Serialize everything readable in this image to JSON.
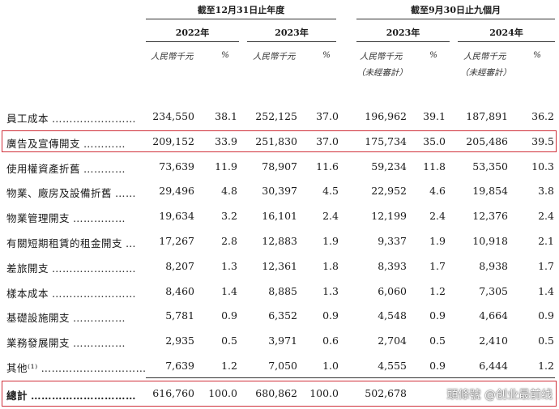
{
  "headers": {
    "group_annual": "截至12月31日止年度",
    "group_nine_months": "截至9月30日止九個月",
    "years": [
      "2022年",
      "2023年",
      "2023年",
      "2024年"
    ],
    "unit": "人民幣千元",
    "unaudited": "（未經審計）",
    "pct": "%"
  },
  "rows": [
    {
      "label": "員工成本",
      "dots": "……………………",
      "v": [
        "234,550",
        "38.1",
        "252,125",
        "37.0",
        "196,962",
        "39.1",
        "187,891",
        "36.2"
      ]
    },
    {
      "label": "廣告及宣傳開支",
      "dots": "…………",
      "v": [
        "209,152",
        "33.9",
        "251,830",
        "37.0",
        "175,734",
        "35.0",
        "205,486",
        "39.5"
      ]
    },
    {
      "label": "使用權資產折舊",
      "dots": "…………",
      "v": [
        "73,639",
        "11.9",
        "78,907",
        "11.6",
        "59,234",
        "11.8",
        "53,350",
        "10.3"
      ]
    },
    {
      "label": "物業、廠房及設備折舊",
      "dots": "……",
      "v": [
        "29,496",
        "4.8",
        "30,397",
        "4.5",
        "22,952",
        "4.6",
        "19,854",
        "3.8"
      ]
    },
    {
      "label": "物業管理開支",
      "dots": "……………",
      "v": [
        "19,634",
        "3.2",
        "16,101",
        "2.4",
        "12,199",
        "2.4",
        "12,376",
        "2.4"
      ]
    },
    {
      "label": "有關短期租賃的租金開支",
      "dots": "…",
      "v": [
        "17,267",
        "2.8",
        "12,883",
        "1.9",
        "9,337",
        "1.9",
        "10,918",
        "2.1"
      ]
    },
    {
      "label": "差旅開支",
      "dots": "……………………",
      "v": [
        "8,207",
        "1.3",
        "12,361",
        "1.8",
        "8,393",
        "1.7",
        "8,938",
        "1.7"
      ]
    },
    {
      "label": "樣本成本",
      "dots": "……………………",
      "v": [
        "8,460",
        "1.4",
        "8,885",
        "1.3",
        "6,060",
        "1.2",
        "7,305",
        "1.4"
      ]
    },
    {
      "label": "基礎設施開支",
      "dots": "……………",
      "v": [
        "5,781",
        "0.9",
        "6,352",
        "0.9",
        "4,548",
        "0.9",
        "4,664",
        "0.9"
      ]
    },
    {
      "label": "業務發展開支",
      "dots": "……………",
      "v": [
        "2,935",
        "0.5",
        "3,971",
        "0.6",
        "2,704",
        "0.5",
        "2,410",
        "0.5"
      ]
    },
    {
      "label": "其他⁽¹⁾",
      "dots": "…………………………",
      "v": [
        "7,639",
        "1.2",
        "7,050",
        "1.0",
        "4,555",
        "0.9",
        "6,444",
        "1.2"
      ]
    }
  ],
  "total": {
    "label": "總計",
    "dots": "…………………………",
    "v": [
      "616,760",
      "100.0",
      "680,862",
      "100.0",
      "502,678",
      "",
      "",
      ""
    ]
  },
  "watermark": "頭條號 @创业最前线"
}
